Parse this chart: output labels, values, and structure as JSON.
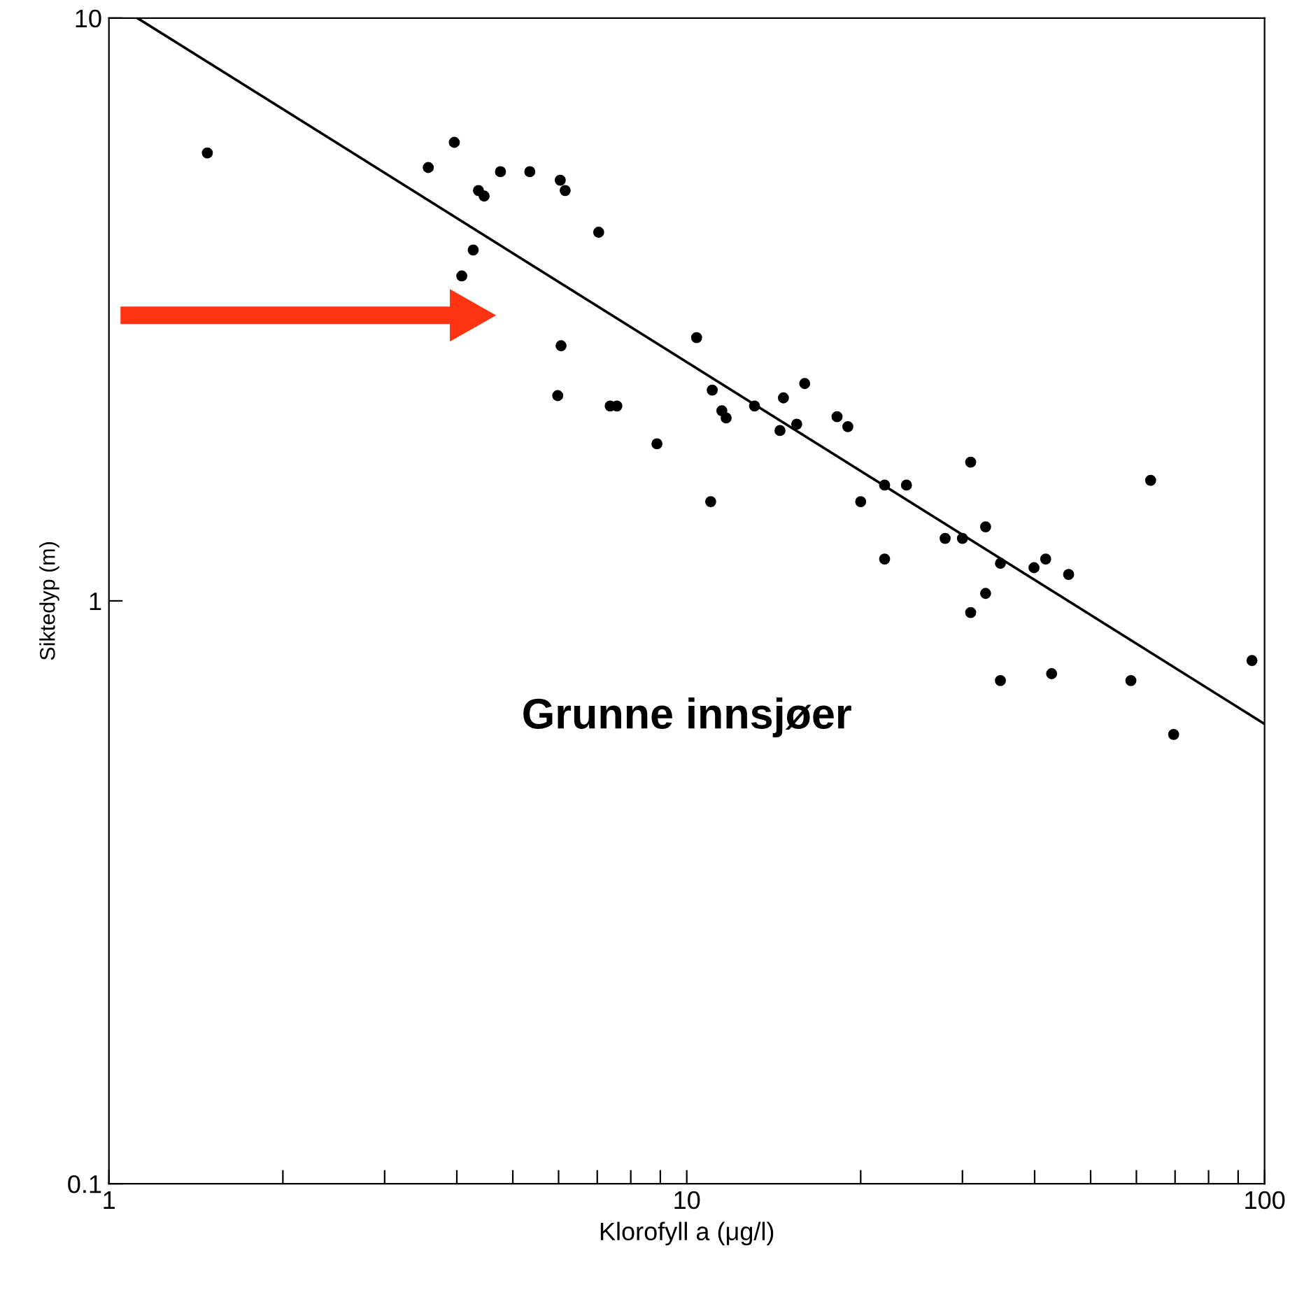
{
  "chart_data": {
    "type": "scatter",
    "xlabel": "Klorofyll a (μg/l)",
    "ylabel": "Siktedyp (m)",
    "log": "xy",
    "xlim": [
      1,
      100
    ],
    "ylim": [
      0.1,
      10
    ],
    "xticks": [
      1,
      {
        "value": 2,
        "label": null
      },
      {
        "value": 3,
        "label": null
      },
      {
        "value": 4,
        "label": null
      },
      {
        "value": 5,
        "label": null
      },
      {
        "value": 6,
        "label": null
      },
      {
        "value": 7,
        "label": null
      },
      {
        "value": 8,
        "label": null
      },
      {
        "value": 9,
        "label": null
      },
      10,
      {
        "value": 20,
        "label": null
      },
      {
        "value": 30,
        "label": null
      },
      {
        "value": 40,
        "label": null
      },
      {
        "value": 50,
        "label": null
      },
      {
        "value": 60,
        "label": null
      },
      {
        "value": 70,
        "label": null
      },
      {
        "value": 80,
        "label": null
      },
      {
        "value": 90,
        "label": null
      },
      100
    ],
    "yticks": [
      0.1,
      1,
      10
    ],
    "grid": false,
    "legend": false,
    "marker": "circle",
    "annotations": [
      "Grunne innsjøer"
    ],
    "series": [
      {
        "color": "#000000",
        "x": [
          1.48,
          3.96,
          3.57,
          4.76,
          5.35,
          4.36,
          4.46,
          6.04,
          6.16,
          7.04,
          4.27,
          4.08,
          6.06,
          5.98,
          7.37,
          7.57,
          8.88,
          10.4,
          11.07,
          11.5,
          11.7,
          11.0,
          13.1,
          14.7,
          16.0,
          14.5,
          15.5,
          18.2,
          19.0,
          20.0,
          22.0,
          24.0,
          22.0,
          31.0,
          32.9,
          28.0,
          30.0,
          34.9,
          39.9,
          41.8,
          45.8,
          32.9,
          31.0,
          34.9,
          42.8,
          58.7,
          63.5,
          69.6,
          95.1
        ],
        "values": [
          5.87,
          6.12,
          5.54,
          5.45,
          5.45,
          5.06,
          4.95,
          5.27,
          5.06,
          4.29,
          4.0,
          3.61,
          2.74,
          2.25,
          2.16,
          2.16,
          1.86,
          2.83,
          2.3,
          2.12,
          2.06,
          1.48,
          2.16,
          2.23,
          2.36,
          1.96,
          2.01,
          2.07,
          1.99,
          1.48,
          1.58,
          1.58,
          1.18,
          1.73,
          1.34,
          1.28,
          1.28,
          1.16,
          1.14,
          1.18,
          1.11,
          1.03,
          0.955,
          0.73,
          0.75,
          0.73,
          1.61,
          0.59,
          0.79
        ]
      },
      {
        "type": "line",
        "color": "#000000",
        "x": [
          1.12,
          100
        ],
        "values": [
          10,
          0.615
        ],
        "line_style": "solid",
        "marker": "none"
      }
    ]
  }
}
